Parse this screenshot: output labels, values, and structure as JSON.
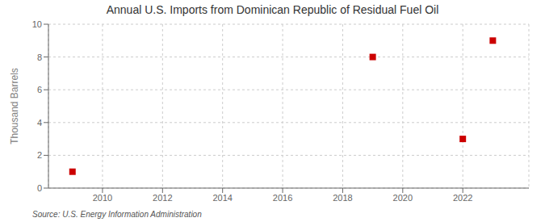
{
  "chart_data": {
    "type": "scatter",
    "title": "Annual U.S. Imports from Dominican Republic of Residual Fuel Oil",
    "y_label": "Thousand Barrels",
    "annotations": [
      "Source: U.S. Energy Information Administration"
    ],
    "x": [
      2009,
      2019,
      2022,
      2023
    ],
    "values": [
      1,
      8,
      3,
      9
    ],
    "color": "#cc0000",
    "marker": "square",
    "xlim": [
      2008.2,
      2024.2
    ],
    "xticks": [
      2010,
      2012,
      2014,
      2016,
      2018,
      2020,
      2022
    ],
    "ylim": [
      0,
      10
    ],
    "yticks": [
      0,
      2,
      4,
      6,
      8,
      10
    ],
    "grid": true
  }
}
